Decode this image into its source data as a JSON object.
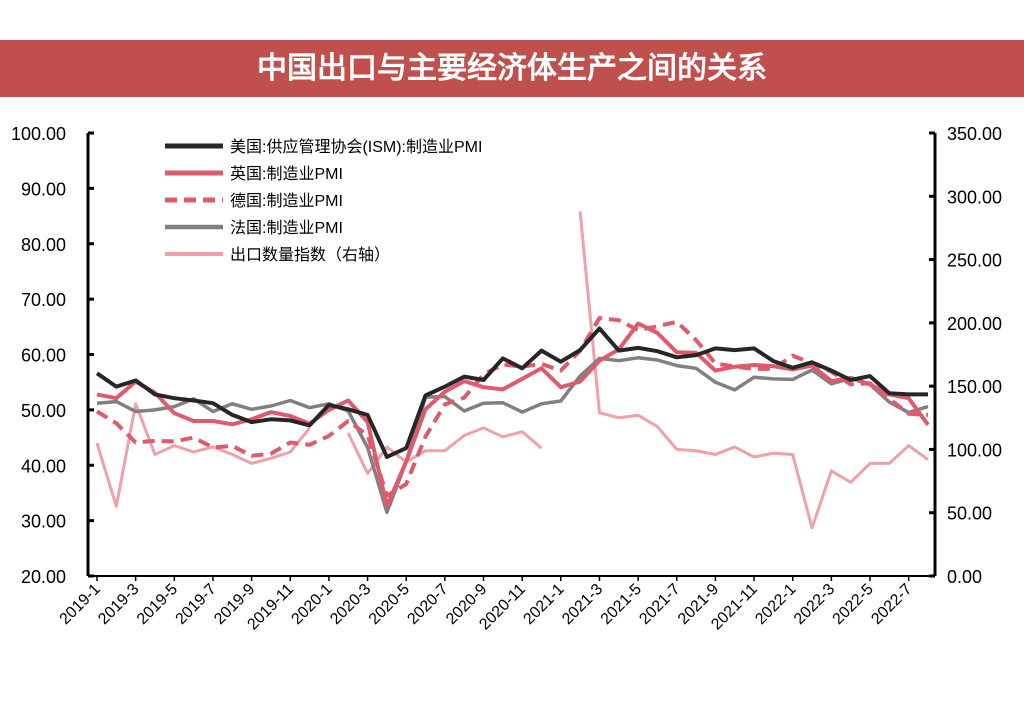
{
  "title": "中国出口与主要经济体生产之间的关系",
  "chart_data": {
    "type": "line",
    "title": "中国出口与主要经济体生产之间的关系",
    "x": [
      "2019-1",
      "2019-2",
      "2019-3",
      "2019-4",
      "2019-5",
      "2019-6",
      "2019-7",
      "2019-8",
      "2019-9",
      "2019-10",
      "2019-11",
      "2019-12",
      "2020-1",
      "2020-2",
      "2020-3",
      "2020-4",
      "2020-5",
      "2020-6",
      "2020-7",
      "2020-8",
      "2020-9",
      "2020-10",
      "2020-11",
      "2020-12",
      "2021-1",
      "2021-2",
      "2021-3",
      "2021-4",
      "2021-5",
      "2021-6",
      "2021-7",
      "2021-8",
      "2021-9",
      "2021-10",
      "2021-11",
      "2021-12",
      "2022-1",
      "2022-2",
      "2022-3",
      "2022-4",
      "2022-5",
      "2022-6",
      "2022-7",
      "2022-8"
    ],
    "x_tick_labels": [
      "2019-1",
      "2019-3",
      "2019-5",
      "2019-7",
      "2019-9",
      "2019-11",
      "2020-1",
      "2020-3",
      "2020-5",
      "2020-7",
      "2020-9",
      "2020-11",
      "2021-1",
      "2021-3",
      "2021-5",
      "2021-7",
      "2021-9",
      "2021-11",
      "2022-1",
      "2022-3",
      "2022-5",
      "2022-7"
    ],
    "ylim": [
      20,
      100
    ],
    "y_ticks": [
      "20.00",
      "30.00",
      "40.00",
      "50.00",
      "60.00",
      "70.00",
      "80.00",
      "90.00",
      "100.00"
    ],
    "y2lim": [
      0,
      350
    ],
    "y2_ticks": [
      "0.00",
      "50.00",
      "100.00",
      "150.00",
      "200.00",
      "250.00",
      "300.00",
      "350.00"
    ],
    "legend_position": "top-left",
    "series": [
      {
        "name": "美国:供应管理协会(ISM):制造业PMI",
        "axis": "left",
        "color": "#262626",
        "width": 4,
        "dash": "",
        "values": [
          56.6,
          54.2,
          55.3,
          52.8,
          52.1,
          51.7,
          51.2,
          49.1,
          47.8,
          48.3,
          48.1,
          47.2,
          50.9,
          50.1,
          49.1,
          41.5,
          43.1,
          52.6,
          54.2,
          56.0,
          55.4,
          59.3,
          57.5,
          60.7,
          58.7,
          60.8,
          64.7,
          60.7,
          61.2,
          60.6,
          59.5,
          59.9,
          61.1,
          60.8,
          61.1,
          58.8,
          57.6,
          58.6,
          57.1,
          55.4,
          56.1,
          53.0,
          52.8,
          52.8
        ]
      },
      {
        "name": "英国:制造业PMI",
        "axis": "left",
        "color": "#e05a6e",
        "width": 4,
        "dash": "",
        "values": [
          52.8,
          52.1,
          55.1,
          53.1,
          49.4,
          48.0,
          48.0,
          47.4,
          48.3,
          49.6,
          48.9,
          47.5,
          50.0,
          51.7,
          47.8,
          32.6,
          40.7,
          50.1,
          53.3,
          55.2,
          54.1,
          53.7,
          55.6,
          57.5,
          54.1,
          55.1,
          58.9,
          60.9,
          65.6,
          63.9,
          60.4,
          60.3,
          57.1,
          57.8,
          58.1,
          57.9,
          57.3,
          58.0,
          55.2,
          55.8,
          54.6,
          52.8,
          52.1,
          47.3
        ]
      },
      {
        "name": "德国:制造业PMI",
        "axis": "left",
        "color": "#e05a6e",
        "width": 4,
        "dash": "12,7",
        "values": [
          49.7,
          47.6,
          44.1,
          44.4,
          44.3,
          45.0,
          43.2,
          43.5,
          41.7,
          42.1,
          44.1,
          43.7,
          45.3,
          48.0,
          45.4,
          34.5,
          36.6,
          45.2,
          51.0,
          52.2,
          56.4,
          58.2,
          57.8,
          58.3,
          57.1,
          60.7,
          66.6,
          66.2,
          64.4,
          65.1,
          65.9,
          62.6,
          58.4,
          57.8,
          57.4,
          57.4,
          59.8,
          58.4,
          56.9,
          54.6,
          54.8,
          52.0,
          49.3,
          49.1
        ]
      },
      {
        "name": "法国:制造业PMI",
        "axis": "left",
        "color": "#808080",
        "width": 3.5,
        "dash": "",
        "values": [
          51.2,
          51.5,
          49.7,
          50.0,
          50.6,
          52.0,
          49.7,
          51.1,
          50.1,
          50.7,
          51.7,
          50.4,
          51.1,
          49.8,
          43.2,
          31.5,
          40.6,
          52.3,
          52.4,
          49.8,
          51.2,
          51.3,
          49.6,
          51.1,
          51.6,
          56.1,
          59.3,
          58.9,
          59.4,
          59.0,
          58.0,
          57.5,
          55.0,
          53.6,
          55.9,
          55.6,
          55.5,
          57.2,
          54.7,
          55.7,
          54.6,
          51.4,
          49.5,
          50.6
        ]
      },
      {
        "name": "出口数量指数（右轴）",
        "axis": "right",
        "color": "#f0a0a8",
        "width": 3,
        "dash": "",
        "values": [
          105,
          55,
          136,
          96,
          103,
          98,
          102,
          96,
          89,
          93,
          98,
          117,
          null,
          113,
          81,
          102,
          90,
          99,
          99,
          111,
          117,
          110,
          114,
          101,
          null,
          288,
          129,
          125,
          127,
          118,
          100,
          99,
          96,
          102,
          94,
          97,
          96,
          38,
          83,
          74,
          89,
          89,
          103,
          92
        ]
      }
    ]
  }
}
